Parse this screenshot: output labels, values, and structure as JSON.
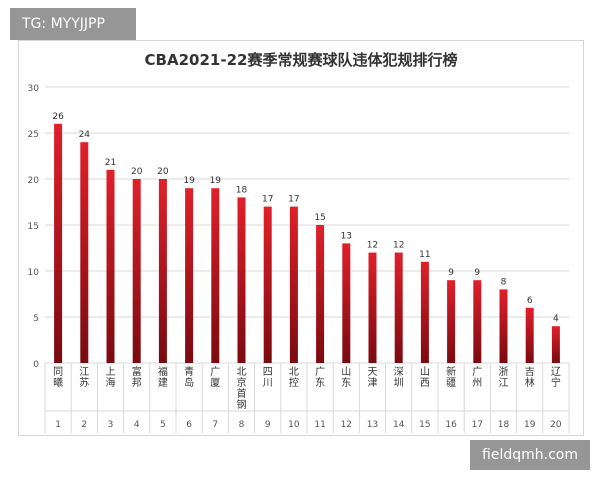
{
  "watermark_top": "TG: MYYJJPP",
  "watermark_bottom": "fieldqmh.com",
  "colors": {
    "bar_top": "#e0202a",
    "bar_bottom": "#7a0a10",
    "grid": "#d9d9d9",
    "text": "#333333"
  },
  "chart_data": {
    "type": "bar",
    "title": "CBA2021-22赛季常规赛球队违体犯规排行榜",
    "xlabel": "",
    "ylabel": "",
    "ylim": [
      0,
      30
    ],
    "yticks": [
      0,
      5,
      10,
      15,
      20,
      25,
      30
    ],
    "grid": true,
    "categories": [
      "同曦",
      "江苏",
      "上海",
      "富邦",
      "福建",
      "青岛",
      "广厦",
      "北京首钢",
      "四川",
      "北控",
      "广东",
      "山东",
      "天津",
      "深圳",
      "山西",
      "新疆",
      "广州",
      "浙江",
      "吉林",
      "辽宁"
    ],
    "ranks": [
      "1",
      "2",
      "3",
      "4",
      "5",
      "6",
      "7",
      "8",
      "9",
      "10",
      "11",
      "12",
      "13",
      "14",
      "15",
      "16",
      "17",
      "18",
      "19",
      "20"
    ],
    "values": [
      26,
      24,
      21,
      20,
      20,
      19,
      19,
      18,
      17,
      17,
      15,
      13,
      12,
      12,
      11,
      9,
      9,
      8,
      6,
      4
    ]
  }
}
